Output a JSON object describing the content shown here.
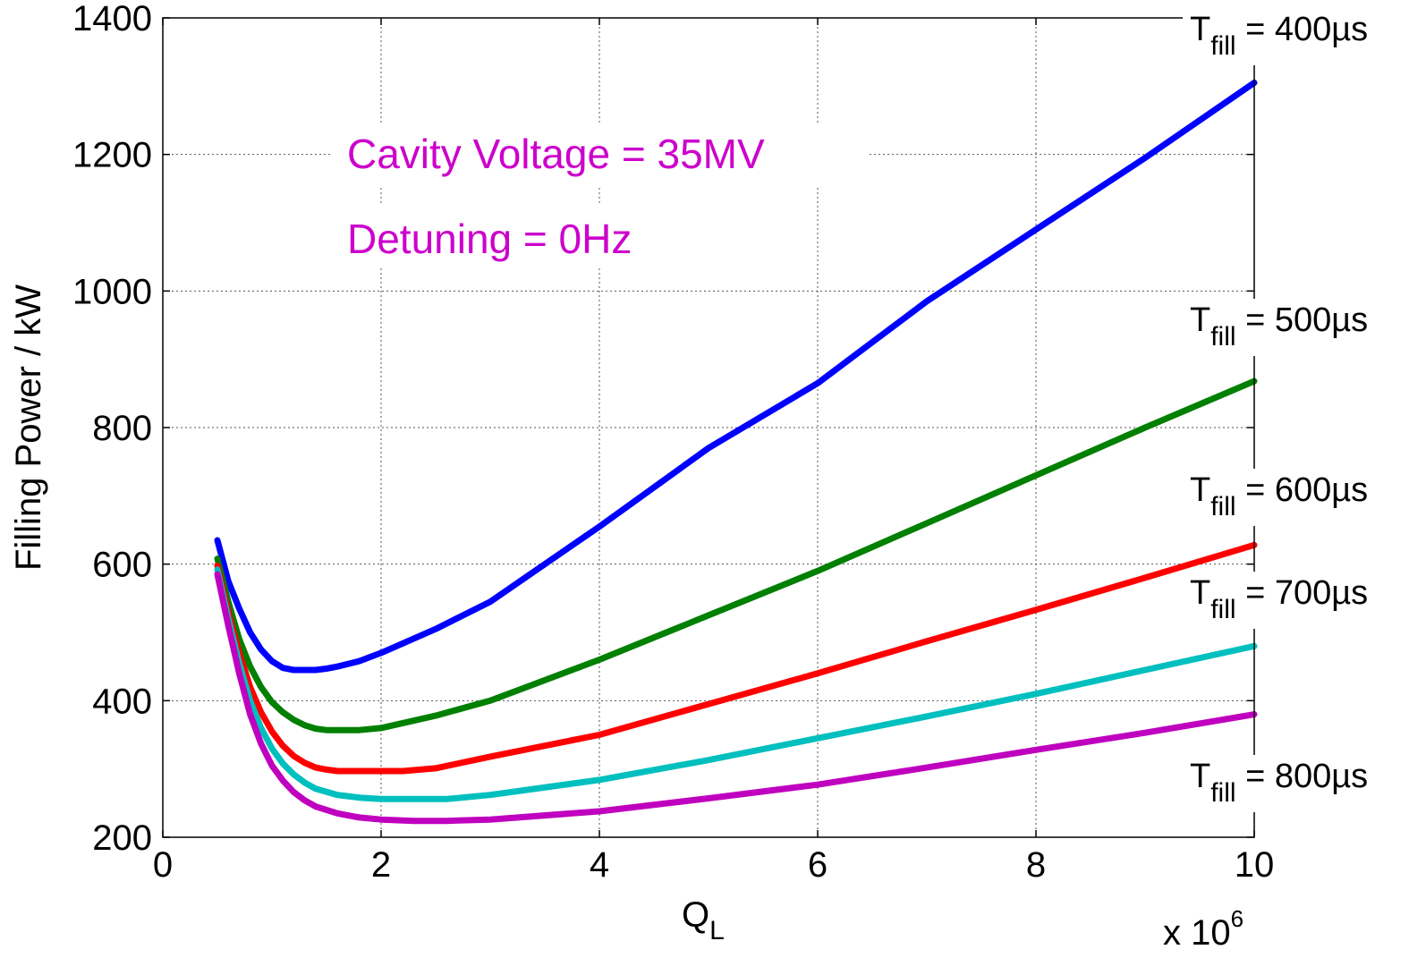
{
  "chart_data": {
    "type": "line",
    "xlabel": "Q",
    "xlabel_sub": "L",
    "ylabel": "Filling Power / kW",
    "x_multiplier_label": "x 10",
    "x_multiplier_exp": "6",
    "xlim": [
      0,
      10
    ],
    "ylim": [
      200,
      1400
    ],
    "x_ticks": [
      0,
      2,
      4,
      6,
      8,
      10
    ],
    "y_ticks": [
      200,
      400,
      600,
      800,
      1000,
      1200,
      1400
    ],
    "grid": true,
    "x_tick_labels": [
      "0",
      "2",
      "4",
      "6",
      "8",
      "10"
    ],
    "y_tick_labels": [
      "200",
      "400",
      "600",
      "800",
      "1000",
      "1200",
      "1400"
    ],
    "annotations": [
      {
        "text": "Cavity Voltage = 35MV",
        "color": "#CC00CC"
      },
      {
        "text": "Detuning = 0Hz",
        "color": "#CC00CC"
      }
    ],
    "series": [
      {
        "label_main": "T",
        "label_sub": "fill",
        "label_rest": " = 400µs",
        "color": "#0000FF",
        "points": [
          [
            0.5,
            635
          ],
          [
            0.55,
            605
          ],
          [
            0.6,
            575
          ],
          [
            0.7,
            535
          ],
          [
            0.8,
            500
          ],
          [
            0.9,
            475
          ],
          [
            1.0,
            458
          ],
          [
            1.1,
            448
          ],
          [
            1.2,
            445
          ],
          [
            1.3,
            445
          ],
          [
            1.4,
            445
          ],
          [
            1.5,
            447
          ],
          [
            1.6,
            450
          ],
          [
            1.8,
            458
          ],
          [
            2.0,
            470
          ],
          [
            2.5,
            505
          ],
          [
            3.0,
            545
          ],
          [
            4.0,
            655
          ],
          [
            5.0,
            770
          ],
          [
            6.0,
            865
          ],
          [
            7.0,
            985
          ],
          [
            8.0,
            1090
          ],
          [
            9.0,
            1195
          ],
          [
            10.0,
            1305
          ]
        ]
      },
      {
        "label_main": "T",
        "label_sub": "fill",
        "label_rest": " = 500µs",
        "color": "#008000",
        "points": [
          [
            0.5,
            608
          ],
          [
            0.6,
            545
          ],
          [
            0.7,
            490
          ],
          [
            0.8,
            450
          ],
          [
            0.9,
            420
          ],
          [
            1.0,
            398
          ],
          [
            1.1,
            383
          ],
          [
            1.2,
            372
          ],
          [
            1.3,
            364
          ],
          [
            1.4,
            359
          ],
          [
            1.5,
            357
          ],
          [
            1.6,
            357
          ],
          [
            1.7,
            357
          ],
          [
            1.8,
            357
          ],
          [
            2.0,
            360
          ],
          [
            2.5,
            378
          ],
          [
            3.0,
            400
          ],
          [
            4.0,
            460
          ],
          [
            5.0,
            525
          ],
          [
            6.0,
            590
          ],
          [
            7.0,
            660
          ],
          [
            8.0,
            730
          ],
          [
            9.0,
            800
          ],
          [
            10.0,
            868
          ]
        ]
      },
      {
        "label_main": "T",
        "label_sub": "fill",
        "label_rest": " = 600µs",
        "color": "#FF0000",
        "points": [
          [
            0.5,
            598
          ],
          [
            0.6,
            530
          ],
          [
            0.7,
            470
          ],
          [
            0.8,
            420
          ],
          [
            0.9,
            383
          ],
          [
            1.0,
            355
          ],
          [
            1.1,
            334
          ],
          [
            1.2,
            319
          ],
          [
            1.3,
            309
          ],
          [
            1.4,
            302
          ],
          [
            1.5,
            299
          ],
          [
            1.6,
            297
          ],
          [
            1.8,
            297
          ],
          [
            2.0,
            297
          ],
          [
            2.2,
            297
          ],
          [
            2.5,
            301
          ],
          [
            3.0,
            318
          ],
          [
            4.0,
            350
          ],
          [
            5.0,
            395
          ],
          [
            6.0,
            440
          ],
          [
            7.0,
            487
          ],
          [
            8.0,
            533
          ],
          [
            9.0,
            580
          ],
          [
            10.0,
            628
          ]
        ]
      },
      {
        "label_main": "T",
        "label_sub": "fill",
        "label_rest": " = 700µs",
        "color": "#00BFBF",
        "points": [
          [
            0.5,
            592
          ],
          [
            0.6,
            520
          ],
          [
            0.7,
            455
          ],
          [
            0.8,
            400
          ],
          [
            0.9,
            360
          ],
          [
            1.0,
            330
          ],
          [
            1.1,
            308
          ],
          [
            1.2,
            292
          ],
          [
            1.3,
            280
          ],
          [
            1.4,
            271
          ],
          [
            1.6,
            262
          ],
          [
            1.8,
            258
          ],
          [
            2.0,
            256
          ],
          [
            2.2,
            256
          ],
          [
            2.6,
            256
          ],
          [
            3.0,
            262
          ],
          [
            4.0,
            284
          ],
          [
            5.0,
            313
          ],
          [
            6.0,
            345
          ],
          [
            7.0,
            377
          ],
          [
            8.0,
            410
          ],
          [
            9.0,
            445
          ],
          [
            10.0,
            480
          ]
        ]
      },
      {
        "label_main": "T",
        "label_sub": "fill",
        "label_rest": " = 800µs",
        "color": "#BF00BF",
        "points": [
          [
            0.5,
            585
          ],
          [
            0.6,
            510
          ],
          [
            0.7,
            440
          ],
          [
            0.8,
            380
          ],
          [
            0.9,
            337
          ],
          [
            1.0,
            305
          ],
          [
            1.1,
            283
          ],
          [
            1.2,
            266
          ],
          [
            1.3,
            254
          ],
          [
            1.4,
            245
          ],
          [
            1.6,
            235
          ],
          [
            1.8,
            229
          ],
          [
            2.0,
            226
          ],
          [
            2.3,
            224
          ],
          [
            2.6,
            224
          ],
          [
            3.0,
            226
          ],
          [
            4.0,
            238
          ],
          [
            5.0,
            257
          ],
          [
            6.0,
            277
          ],
          [
            7.0,
            302
          ],
          [
            8.0,
            328
          ],
          [
            9.0,
            353
          ],
          [
            10.0,
            380
          ]
        ]
      }
    ]
  }
}
